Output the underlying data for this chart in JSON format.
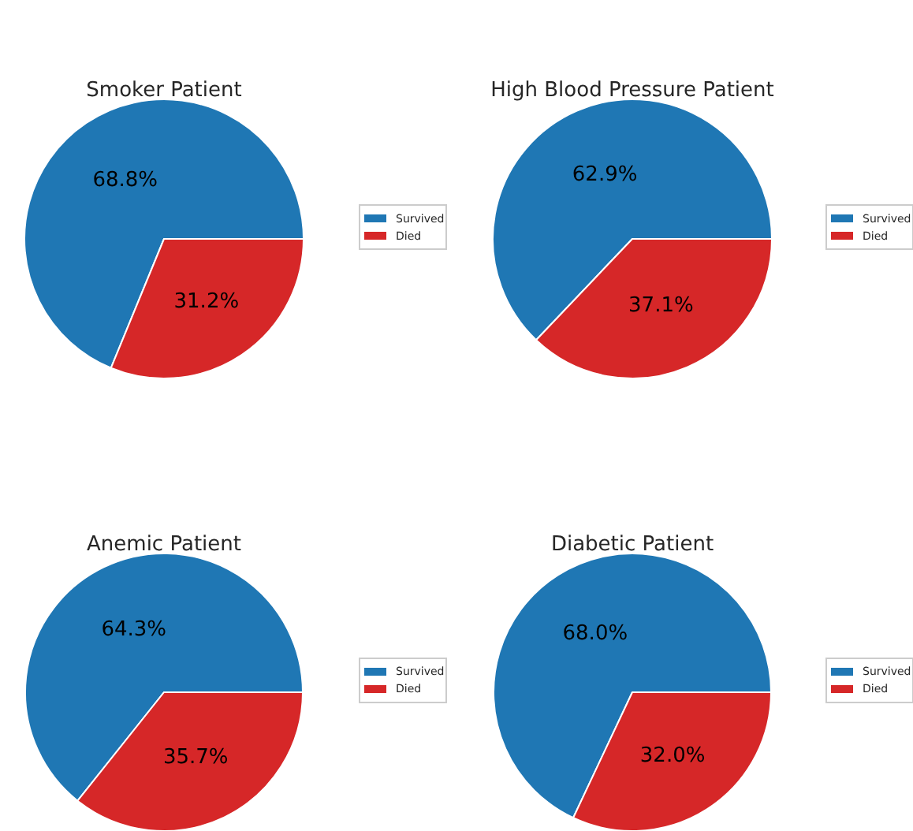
{
  "chart_data": [
    {
      "type": "pie",
      "title": "Smoker Patient",
      "categories": [
        "Survived",
        "Died"
      ],
      "values": [
        68.8,
        31.2
      ],
      "value_labels": [
        "68.8%",
        "31.2%"
      ],
      "colors": [
        "#1f77b4",
        "#d62728"
      ],
      "legend": "right"
    },
    {
      "type": "pie",
      "title": "High Blood Pressure Patient",
      "categories": [
        "Survived",
        "Died"
      ],
      "values": [
        62.9,
        37.1
      ],
      "value_labels": [
        "62.9%",
        "37.1%"
      ],
      "colors": [
        "#1f77b4",
        "#d62728"
      ],
      "legend": "right"
    },
    {
      "type": "pie",
      "title": "Anemic Patient",
      "categories": [
        "Survived",
        "Died"
      ],
      "values": [
        64.3,
        35.7
      ],
      "value_labels": [
        "64.3%",
        "35.7%"
      ],
      "colors": [
        "#1f77b4",
        "#d62728"
      ],
      "legend": "right"
    },
    {
      "type": "pie",
      "title": "Diabetic Patient",
      "categories": [
        "Survived",
        "Died"
      ],
      "values": [
        68.0,
        32.0
      ],
      "value_labels": [
        "68.0%",
        "32.0%"
      ],
      "colors": [
        "#1f77b4",
        "#d62728"
      ],
      "legend": "right"
    }
  ]
}
